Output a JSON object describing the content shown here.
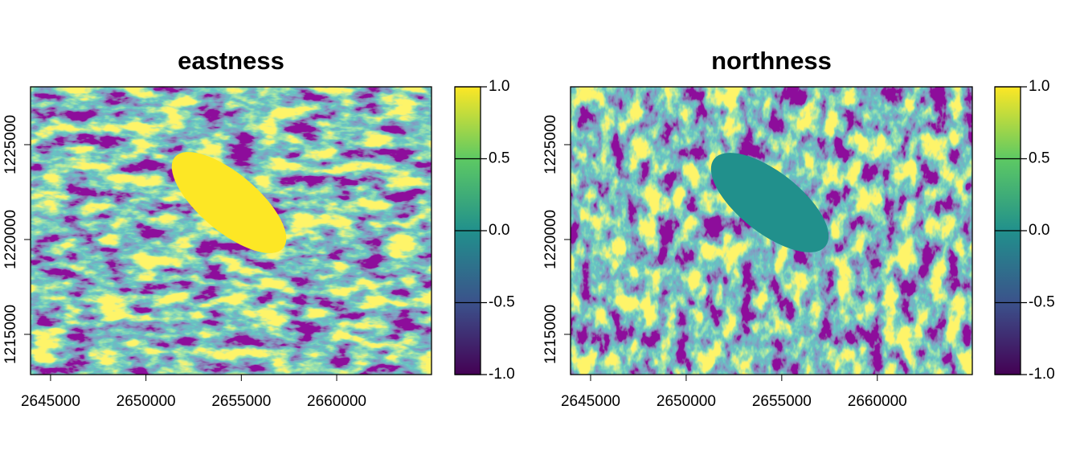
{
  "chart_data": [
    {
      "type": "raster",
      "title": "eastness",
      "xlim": [
        2643950,
        2664970
      ],
      "ylim": [
        1212880,
        1228050
      ],
      "xticks": [
        2645000,
        2650000,
        2655000,
        2660000
      ],
      "yticks": [
        1215000,
        1220000,
        1225000
      ],
      "zlim": [
        -1,
        1
      ],
      "zticks": [
        {
          "value": -1,
          "label": "-1.0"
        },
        {
          "value": -0.5,
          "label": "-0.5"
        },
        {
          "value": 0,
          "label": "0.0"
        },
        {
          "value": 0.5,
          "label": "0.5"
        },
        {
          "value": 1,
          "label": "1.0"
        }
      ],
      "colors": [
        "#440154",
        "#3b528b",
        "#21908c",
        "#5dc963",
        "#fde725"
      ]
    },
    {
      "type": "raster",
      "title": "northness",
      "xlim": [
        2643950,
        2664970
      ],
      "ylim": [
        1212880,
        1228050
      ],
      "xticks": [
        2645000,
        2650000,
        2655000,
        2660000
      ],
      "yticks": [
        1215000,
        1220000,
        1225000
      ],
      "zlim": [
        -1,
        1
      ],
      "zticks": [
        {
          "value": -1,
          "label": "-1.0"
        },
        {
          "value": -0.5,
          "label": "-0.5"
        },
        {
          "value": 0,
          "label": "0.0"
        },
        {
          "value": 0.5,
          "label": "0.5"
        },
        {
          "value": 1,
          "label": "1.0"
        }
      ],
      "colors": [
        "#440154",
        "#3b528b",
        "#21908c",
        "#5dc963",
        "#fde725"
      ]
    }
  ]
}
